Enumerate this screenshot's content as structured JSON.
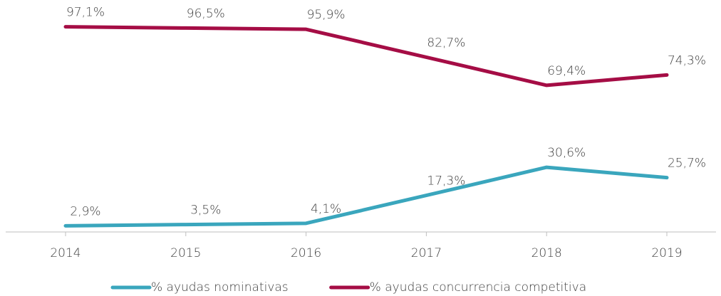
{
  "chart_data": {
    "type": "line",
    "categories": [
      "2014",
      "2015",
      "2016",
      "2017",
      "2018",
      "2019"
    ],
    "series": [
      {
        "name": "% ayudas nominativas",
        "color": "#3aa6bd",
        "values": [
          2.9,
          3.5,
          4.1,
          17.3,
          30.6,
          25.7
        ],
        "value_labels": [
          "2,9%",
          "3,5%",
          "4,1%",
          "17,3%",
          "30,6%",
          "25,7%"
        ]
      },
      {
        "name": "% ayudas concurrencia competitiva",
        "color": "#a50d45",
        "values": [
          97.1,
          96.5,
          95.9,
          82.7,
          69.4,
          74.3
        ],
        "value_labels": [
          "97,1%",
          "96,5%",
          "95,9%",
          "82,7%",
          "69,4%",
          "74,3%"
        ]
      }
    ],
    "ylim": [
      0,
      100
    ],
    "grid": false,
    "legend": "bottom"
  }
}
